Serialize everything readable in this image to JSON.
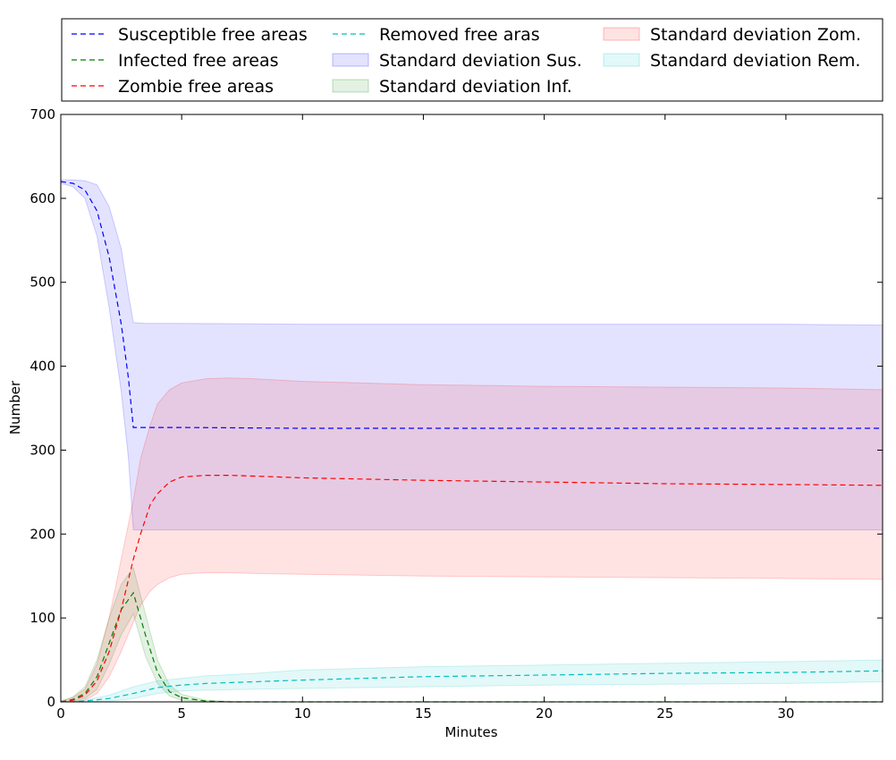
{
  "chart_data": {
    "type": "line",
    "xlabel": "Minutes",
    "ylabel": "Number",
    "xlim": [
      0,
      34
    ],
    "ylim": [
      0,
      700
    ],
    "xticks": [
      0,
      5,
      10,
      15,
      20,
      25,
      30
    ],
    "yticks": [
      0,
      100,
      200,
      300,
      400,
      500,
      600,
      700
    ],
    "grid": false,
    "legend_position": "top (outside plot, 3 columns)",
    "series": [
      {
        "name": "Susceptible free areas",
        "style": "dashed",
        "color": "#0000ff",
        "x": [
          0,
          0.5,
          1,
          1.5,
          2,
          2.5,
          2.8,
          3.0,
          3.5,
          5,
          10,
          15,
          20,
          25,
          30,
          34
        ],
        "y": [
          620,
          618,
          610,
          585,
          530,
          450,
          385,
          327,
          327,
          327,
          326,
          326,
          326,
          326,
          326,
          326
        ]
      },
      {
        "name": "Infected free areas",
        "style": "dashed",
        "color": "#008000",
        "x": [
          0,
          0.5,
          1,
          1.5,
          2,
          2.5,
          3.0,
          3.5,
          4,
          4.5,
          5,
          6,
          7,
          8,
          10,
          15,
          20,
          25,
          30,
          34
        ],
        "y": [
          0,
          3,
          10,
          30,
          70,
          110,
          130,
          80,
          35,
          12,
          5,
          1,
          0,
          0,
          0,
          0,
          0,
          0,
          0,
          0
        ]
      },
      {
        "name": "Zombie free areas",
        "style": "dashed",
        "color": "#ff0000",
        "x": [
          0,
          0.5,
          1,
          1.5,
          2,
          2.5,
          3.0,
          3.3,
          3.7,
          4,
          4.5,
          5,
          6,
          7,
          8,
          10,
          15,
          20,
          25,
          30,
          34
        ],
        "y": [
          0,
          2,
          8,
          25,
          60,
          110,
          170,
          200,
          235,
          248,
          262,
          268,
          270,
          270,
          269,
          267,
          264,
          262,
          260,
          259,
          258
        ]
      },
      {
        "name": "Removed free aras",
        "style": "dashed",
        "color": "#00bfbf",
        "x": [
          0,
          1,
          2,
          3,
          4,
          5,
          6,
          8,
          10,
          15,
          20,
          25,
          30,
          34
        ],
        "y": [
          0,
          1,
          4,
          10,
          17,
          20,
          22,
          24,
          26,
          30,
          32,
          34,
          35,
          37
        ]
      }
    ],
    "bands": [
      {
        "name": "Standard deviation Sus.",
        "color": "#0000ff",
        "x": [
          0,
          0.5,
          1,
          1.5,
          2,
          2.5,
          2.8,
          3.0,
          3.5,
          5,
          10,
          15,
          20,
          25,
          30,
          34
        ],
        "upper": [
          622,
          622,
          621,
          616,
          590,
          540,
          485,
          452,
          451,
          451,
          450,
          450,
          450,
          450,
          450,
          449
        ],
        "lower": [
          618,
          614,
          600,
          555,
          470,
          370,
          290,
          205,
          205,
          205,
          205,
          205,
          205,
          205,
          205,
          205
        ]
      },
      {
        "name": "Standard deviation Inf.",
        "color": "#008000",
        "x": [
          0,
          0.5,
          1,
          1.5,
          2,
          2.5,
          3.0,
          3.5,
          4,
          4.5,
          5,
          6,
          7,
          8,
          10,
          15,
          20,
          25,
          30,
          34
        ],
        "upper": [
          1,
          6,
          18,
          50,
          100,
          140,
          160,
          105,
          50,
          20,
          9,
          2,
          0.5,
          0,
          0,
          0,
          0,
          0,
          0,
          0
        ],
        "lower": [
          0,
          1,
          4,
          15,
          45,
          80,
          105,
          55,
          22,
          7,
          2,
          0,
          0,
          0,
          0,
          0,
          0,
          0,
          0,
          0
        ]
      },
      {
        "name": "Standard deviation Zom.",
        "color": "#ff0000",
        "x": [
          0,
          0.5,
          1,
          1.5,
          2,
          2.5,
          3.0,
          3.3,
          3.7,
          4,
          4.5,
          5,
          6,
          7,
          8,
          10,
          15,
          20,
          25,
          30,
          34
        ],
        "upper": [
          1,
          5,
          15,
          45,
          100,
          170,
          240,
          290,
          330,
          355,
          372,
          380,
          385,
          386,
          385,
          382,
          378,
          376,
          375,
          374,
          372
        ],
        "lower": [
          0,
          0,
          2,
          10,
          30,
          60,
          95,
          115,
          132,
          140,
          148,
          152,
          154,
          154,
          153,
          152,
          150,
          149,
          148,
          147,
          146
        ]
      },
      {
        "name": "Standard deviation Rem.",
        "color": "#00bfbf",
        "x": [
          0,
          1,
          2,
          3,
          4,
          5,
          6,
          8,
          10,
          15,
          20,
          25,
          30,
          34
        ],
        "upper": [
          0,
          2,
          8,
          18,
          25,
          28,
          31,
          34,
          38,
          42,
          44,
          46,
          48,
          50
        ],
        "lower": [
          0,
          0,
          1,
          4,
          10,
          13,
          14,
          15,
          16,
          18,
          20,
          21,
          22,
          24
        ]
      }
    ]
  }
}
